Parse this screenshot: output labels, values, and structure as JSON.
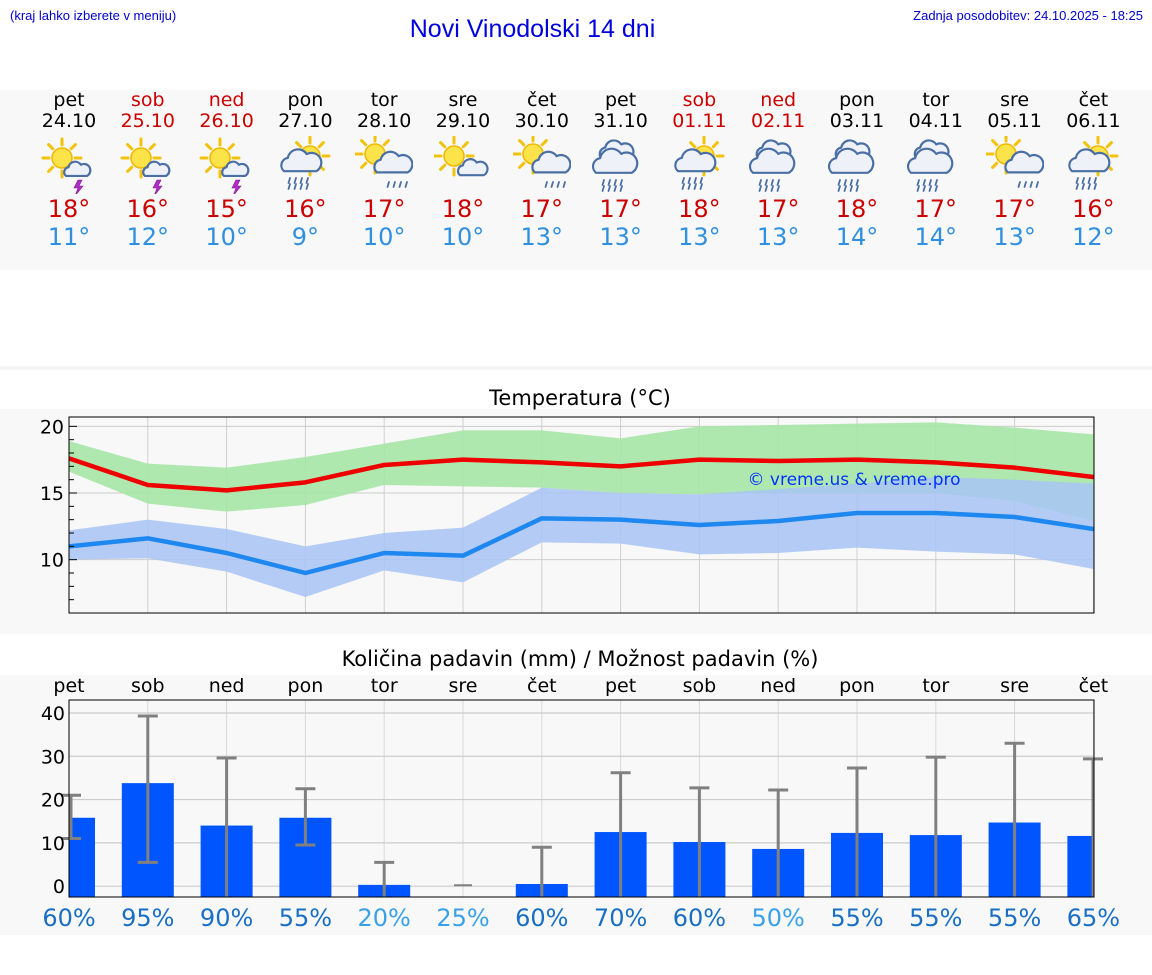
{
  "header": {
    "hint": "(kraj lahko izberete v meniju)",
    "title": "Novi Vinodolski 14 dni",
    "updated": "Zadnja posodobitev: 24.10.2025 - 18:25"
  },
  "days": [
    {
      "name": "pet",
      "date": "24.10",
      "weekend": false,
      "icon": "sun-thunderstorm-icon",
      "tmax": "18°",
      "tmin": "11°"
    },
    {
      "name": "sob",
      "date": "25.10",
      "weekend": true,
      "icon": "sun-thunderstorm-icon",
      "tmax": "16°",
      "tmin": "12°"
    },
    {
      "name": "ned",
      "date": "26.10",
      "weekend": true,
      "icon": "sun-thunderstorm-icon",
      "tmax": "15°",
      "tmin": "10°"
    },
    {
      "name": "pon",
      "date": "27.10",
      "weekend": false,
      "icon": "sun-rain-icon",
      "tmax": "16°",
      "tmin": "9°"
    },
    {
      "name": "tor",
      "date": "28.10",
      "weekend": false,
      "icon": "sun-light-rain-icon",
      "tmax": "17°",
      "tmin": "10°"
    },
    {
      "name": "sre",
      "date": "29.10",
      "weekend": false,
      "icon": "sun-cloud-icon",
      "tmax": "18°",
      "tmin": "10°"
    },
    {
      "name": "čet",
      "date": "30.10",
      "weekend": false,
      "icon": "sun-light-rain-icon",
      "tmax": "17°",
      "tmin": "13°"
    },
    {
      "name": "pet",
      "date": "31.10",
      "weekend": false,
      "icon": "cloud-rain-icon",
      "tmax": "17°",
      "tmin": "13°"
    },
    {
      "name": "sob",
      "date": "01.11",
      "weekend": true,
      "icon": "sun-rain-icon",
      "tmax": "18°",
      "tmin": "13°"
    },
    {
      "name": "ned",
      "date": "02.11",
      "weekend": true,
      "icon": "cloud-rain-icon",
      "tmax": "17°",
      "tmin": "13°"
    },
    {
      "name": "pon",
      "date": "03.11",
      "weekend": false,
      "icon": "cloud-rain-icon",
      "tmax": "18°",
      "tmin": "14°"
    },
    {
      "name": "tor",
      "date": "04.11",
      "weekend": false,
      "icon": "cloud-rain-icon",
      "tmax": "17°",
      "tmin": "14°"
    },
    {
      "name": "sre",
      "date": "05.11",
      "weekend": false,
      "icon": "sun-light-rain-icon",
      "tmax": "17°",
      "tmin": "13°"
    },
    {
      "name": "čet",
      "date": "06.11",
      "weekend": false,
      "icon": "sun-rain-icon",
      "tmax": "16°",
      "tmin": "12°"
    }
  ],
  "colors": {
    "title_blue": "#0000dd",
    "weekend_red": "#cc0000",
    "tmin_blue": "#2f8fe0",
    "tmax_line": "#ee0000",
    "tmin_line": "#1e88f0",
    "tmax_band": "#a6e6a6",
    "tmin_band": "#a8c4f4",
    "bar_blue": "#0055ff",
    "whisker_grey": "#808080",
    "pct_dark": "#1a6fc4",
    "pct_light": "#3aa0e8"
  },
  "chart_data": [
    {
      "type": "line",
      "title": "Temperatura (°C)",
      "watermark": "© vreme.us & vreme.pro",
      "x": [
        "24.10",
        "25.10",
        "26.10",
        "27.10",
        "28.10",
        "29.10",
        "30.10",
        "31.10",
        "01.11",
        "02.11",
        "03.11",
        "04.11",
        "05.11",
        "06.11"
      ],
      "ylim": [
        6.0,
        20.7
      ],
      "yticks": [
        "10",
        "15",
        "20"
      ],
      "grid": true,
      "series": [
        {
          "key": "tmax",
          "values": [
            17.6,
            15.6,
            15.2,
            15.8,
            17.1,
            17.5,
            17.3,
            17.0,
            17.5,
            17.4,
            17.5,
            17.3,
            16.9,
            16.2
          ]
        },
        {
          "key": "tmin",
          "values": [
            11.0,
            11.6,
            10.5,
            9.0,
            10.5,
            10.3,
            13.1,
            13.0,
            12.6,
            12.9,
            13.5,
            13.5,
            13.2,
            12.3
          ]
        }
      ],
      "bands": [
        {
          "key": "tmax_range",
          "low": [
            16.6,
            14.2,
            13.6,
            14.1,
            15.6,
            15.5,
            15.4,
            15.0,
            14.9,
            15.0,
            15.0,
            15.0,
            14.4,
            12.9
          ],
          "high": [
            18.9,
            17.2,
            16.9,
            17.7,
            18.7,
            19.7,
            19.7,
            19.1,
            20.0,
            20.1,
            20.2,
            20.3,
            19.9,
            19.4
          ]
        },
        {
          "key": "tmin_range",
          "low": [
            10.0,
            10.1,
            9.1,
            7.2,
            9.2,
            8.3,
            11.3,
            11.2,
            10.4,
            10.5,
            10.9,
            10.6,
            10.4,
            9.3
          ],
          "high": [
            12.2,
            13.0,
            12.3,
            11.0,
            12.0,
            12.4,
            15.4,
            15.0,
            14.9,
            15.3,
            15.7,
            16.2,
            16.0,
            15.7
          ]
        }
      ]
    },
    {
      "type": "bar",
      "title": "Količina padavin (mm) / Možnost padavin (%)",
      "categories": [
        "pet",
        "sob",
        "ned",
        "pon",
        "tor",
        "sre",
        "čet",
        "pet",
        "sob",
        "ned",
        "pon",
        "tor",
        "sre",
        "čet"
      ],
      "ylim": [
        -2.5,
        43
      ],
      "yticks": [
        "0",
        "10",
        "20",
        "30",
        "40"
      ],
      "grid": true,
      "values": [
        15.8,
        23.8,
        14.0,
        15.8,
        0.3,
        0.0,
        0.5,
        12.5,
        10.2,
        8.6,
        12.3,
        11.8,
        14.7,
        11.6
      ],
      "whisker_low": [
        11.0,
        5.5,
        0.0,
        9.5,
        0.0,
        0.0,
        0.0,
        0.0,
        0.0,
        0.0,
        0.0,
        0.0,
        0.0,
        0.0
      ],
      "whisker_high": [
        21.0,
        39.3,
        29.6,
        22.5,
        5.5,
        0.2,
        9.0,
        26.2,
        22.7,
        22.2,
        27.3,
        29.8,
        33.0,
        29.4
      ],
      "probability": [
        "60%",
        "95%",
        "90%",
        "55%",
        "20%",
        "25%",
        "60%",
        "70%",
        "60%",
        "50%",
        "55%",
        "55%",
        "55%",
        "65%"
      ],
      "probability_light": [
        false,
        false,
        false,
        false,
        true,
        true,
        false,
        false,
        false,
        true,
        false,
        false,
        false,
        false
      ]
    }
  ]
}
